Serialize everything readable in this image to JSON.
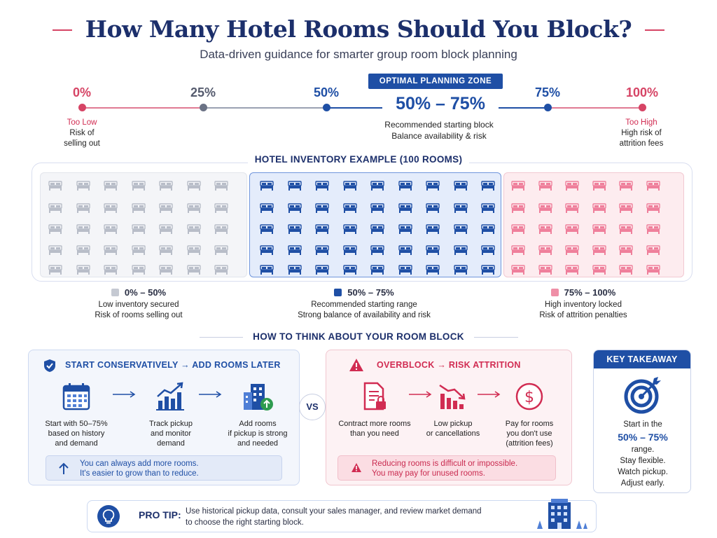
{
  "header": {
    "title": "How Many Hotel Rooms Should You Block?",
    "subtitle": "Data-driven guidance for smarter group room block planning"
  },
  "scale": {
    "ticks": [
      "0%",
      "25%",
      "50%",
      "75%",
      "100%"
    ],
    "zone_tag": "OPTIMAL PLANNING ZONE",
    "zone_range": "50% – 75%",
    "zone_note_1": "Recommended starting block",
    "zone_note_2": "Balance availability & risk",
    "low_head": "Too Low",
    "low_note_1": "Risk of",
    "low_note_2": "selling out",
    "high_head": "Too High",
    "high_note_1": "High risk of",
    "high_note_2": "attrition fees"
  },
  "inventory": {
    "title": "HOTEL INVENTORY EXAMPLE (100 ROOMS)",
    "legend": [
      {
        "range": "0% – 50%",
        "line1": "Low inventory secured",
        "line2": "Risk of rooms selling out"
      },
      {
        "range": "50% – 75%",
        "line1": "Recommended starting range",
        "line2": "Strong balance of availability and risk"
      },
      {
        "range": "75% – 100%",
        "line1": "High inventory locked",
        "line2": "Risk of attrition penalties"
      }
    ]
  },
  "think": {
    "title": "HOW TO THINK ABOUT YOUR ROOM BLOCK",
    "vs": "VS",
    "left": {
      "head": "START CONSERVATIVELY → ADD ROOMS LATER",
      "steps": [
        {
          "l1": "Start with 50–75%",
          "l2": "based on history",
          "l3": "and demand"
        },
        {
          "l1": "Track pickup",
          "l2": "and monitor",
          "l3": "demand"
        },
        {
          "l1": "Add rooms",
          "l2": "if pickup is strong",
          "l3": "and needed"
        }
      ],
      "note_1": "You can always add more rooms.",
      "note_2": "It's easier to grow than to reduce."
    },
    "right": {
      "head": "OVERBLOCK → RISK ATTRITION",
      "steps": [
        {
          "l1": "Contract more rooms",
          "l2": "than you need",
          "l3": ""
        },
        {
          "l1": "Low pickup",
          "l2": "or cancellations",
          "l3": ""
        },
        {
          "l1": "Pay for rooms",
          "l2": "you don't use",
          "l3": "(attrition fees)"
        }
      ],
      "note_1": "Reducing rooms is difficult or impossible.",
      "note_2": "You may pay for unused rooms."
    }
  },
  "takeaway": {
    "head": "KEY TAKEAWAY",
    "l1": "Start in the",
    "range": "50% – 75%",
    "l2": "range.",
    "l3": "Stay flexible.",
    "l4": "Watch pickup.",
    "l5": "Adjust early."
  },
  "protip": {
    "label": "PRO TIP:",
    "text_1": "Use historical pickup data, consult your sales manager, and review market demand",
    "text_2": "to choose the right starting block."
  },
  "colors": {
    "navy": "#1c2f6b",
    "blue": "#1f4fa5",
    "pink": "#d64465",
    "gray": "#b8bdc8"
  }
}
